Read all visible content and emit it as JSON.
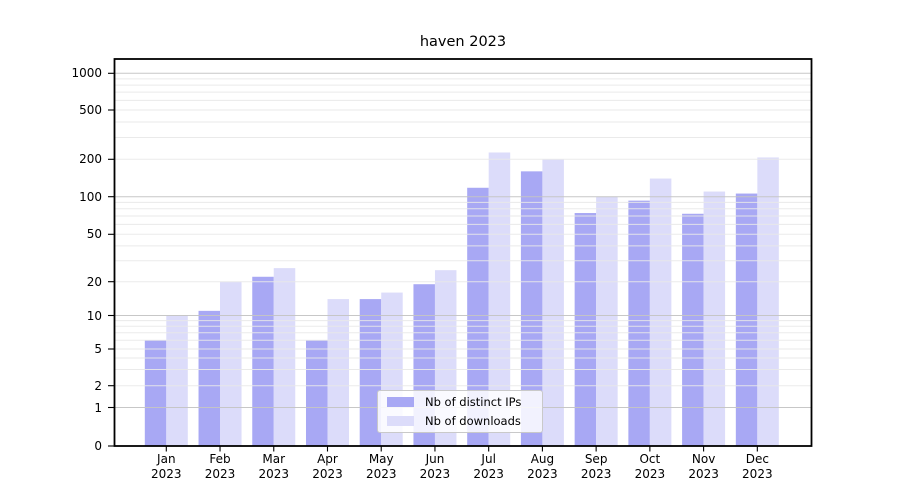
{
  "chart_data": {
    "type": "bar",
    "title": "haven 2023",
    "categories": [
      "Jan 2023",
      "Feb 2023",
      "Mar 2023",
      "Apr 2023",
      "May 2023",
      "Jun 2023",
      "Jul 2023",
      "Aug 2023",
      "Sep 2023",
      "Oct 2023",
      "Nov 2023",
      "Dec 2023"
    ],
    "series": [
      {
        "name": "Nb of distinct IPs",
        "color": "#a8a8f4",
        "values": [
          6,
          11,
          22,
          6,
          14,
          19,
          118,
          160,
          74,
          93,
          73,
          106
        ]
      },
      {
        "name": "Nb of downloads",
        "color": "#dcdcfa",
        "values": [
          10,
          20,
          26,
          14,
          16,
          25,
          227,
          200,
          100,
          140,
          110,
          207
        ]
      }
    ],
    "yscale": "symlog",
    "yticks": [
      0,
      1,
      2,
      5,
      10,
      20,
      50,
      100,
      200,
      500,
      1000
    ],
    "ylim": [
      0,
      1000
    ],
    "grid": true,
    "legend_position": "lower center"
  },
  "colors": {
    "major_grid": "#c4c4c4",
    "minor_grid": "#e8e8e8",
    "spine": "#000000",
    "background": "#ffffff"
  }
}
